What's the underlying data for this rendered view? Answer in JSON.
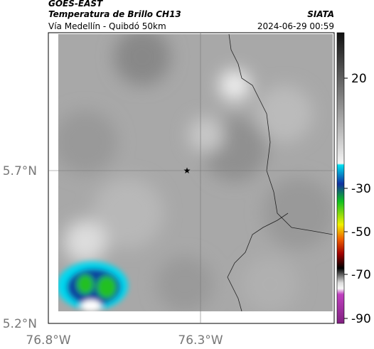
{
  "header": {
    "source": "GOES-EAST",
    "title": "Temperatura de Brillo CH13",
    "agency": "SIATA",
    "subtitle": "Vía Medellín - Quibdó 50km",
    "datetime": "2024-06-29 00:59"
  },
  "axes": {
    "lat_labels": [
      "5.7°N",
      "5.2°N"
    ],
    "lon_labels": [
      "76.8°W",
      "76.3°W"
    ]
  },
  "colorbar": {
    "ticks": [
      20,
      -30,
      -50,
      -70,
      -90
    ]
  }
}
